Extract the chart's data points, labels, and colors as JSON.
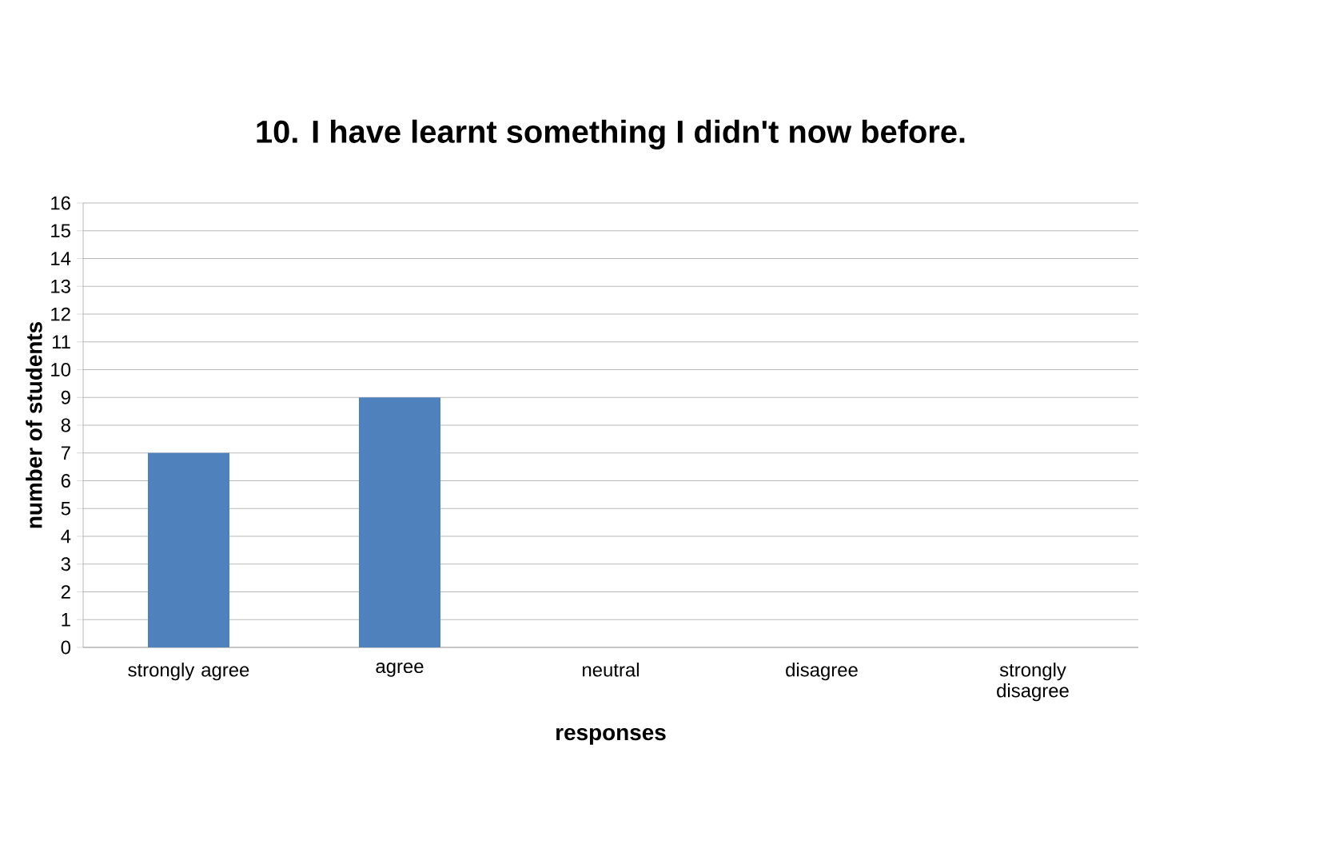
{
  "chart_data": {
    "type": "bar",
    "title": "10. I have learnt something I didn't now before.",
    "xlabel": "responses",
    "ylabel": "number of students",
    "categories": [
      "strongly agree",
      "agree",
      "neutral",
      "disagree",
      "strongly disagree"
    ],
    "values": [
      7,
      9,
      0,
      0,
      0
    ],
    "color": "#4f81bd",
    "ylim": [
      0,
      16
    ],
    "yticks": [
      0,
      1,
      2,
      3,
      4,
      5,
      6,
      7,
      8,
      9,
      10,
      11,
      12,
      13,
      14,
      15,
      16
    ],
    "grid": "y"
  }
}
